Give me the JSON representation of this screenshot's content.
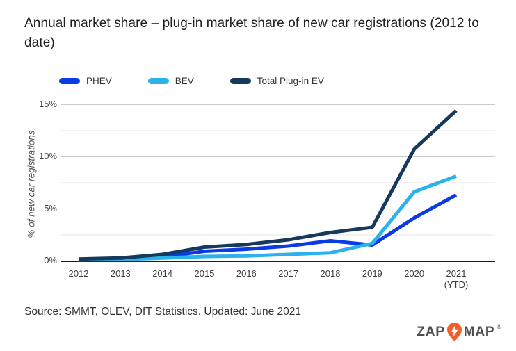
{
  "title": "Annual market share – plug-in market share of new car registrations (2012 to date)",
  "legend": [
    {
      "label": "PHEV",
      "color": "#0a3ce6"
    },
    {
      "label": "BEV",
      "color": "#29b2ec"
    },
    {
      "label": "Total Plug-in EV",
      "color": "#16395c"
    }
  ],
  "chart_data": {
    "type": "line",
    "categories": [
      {
        "label": "2012"
      },
      {
        "label": "2013"
      },
      {
        "label": "2014"
      },
      {
        "label": "2015"
      },
      {
        "label": "2016"
      },
      {
        "label": "2017"
      },
      {
        "label": "2018"
      },
      {
        "label": "2019"
      },
      {
        "label": "2020"
      },
      {
        "label": "2021",
        "sublabel": "(YTD)"
      }
    ],
    "series": [
      {
        "name": "PHEV",
        "color": "#0a3ce6",
        "values": [
          0.05,
          0.1,
          0.35,
          0.9,
          1.1,
          1.4,
          1.9,
          1.5,
          4.1,
          6.3
        ]
      },
      {
        "name": "BEV",
        "color": "#29b2ec",
        "values": [
          0.1,
          0.1,
          0.25,
          0.4,
          0.45,
          0.6,
          0.75,
          1.65,
          6.6,
          8.1
        ]
      },
      {
        "name": "Total Plug-in EV",
        "color": "#16395c",
        "values": [
          0.15,
          0.25,
          0.6,
          1.3,
          1.55,
          2.0,
          2.7,
          3.2,
          10.7,
          14.4
        ]
      }
    ],
    "ylabel": "% of new car registrations",
    "yticks": [
      0,
      5,
      10,
      15
    ],
    "ytick_labels": [
      "0%",
      "5%",
      "10%",
      "15%"
    ],
    "minor_yticks": [
      2.5,
      7.5,
      12.5
    ],
    "ylim": [
      0,
      15.5
    ],
    "grid": "on",
    "legend_position": "top-left",
    "colors": {
      "major_gridline": "#cbcbcb",
      "minor_gridline": "#e6e6e6",
      "axis_line": "#1b1b1b"
    }
  },
  "source": "Source: SMMT, OLEV, DfT Statistics. Updated: June 2021",
  "logo": {
    "zap": "ZAP",
    "map": "MAP",
    "reg": "®",
    "pin_color": "#f15f2d"
  }
}
